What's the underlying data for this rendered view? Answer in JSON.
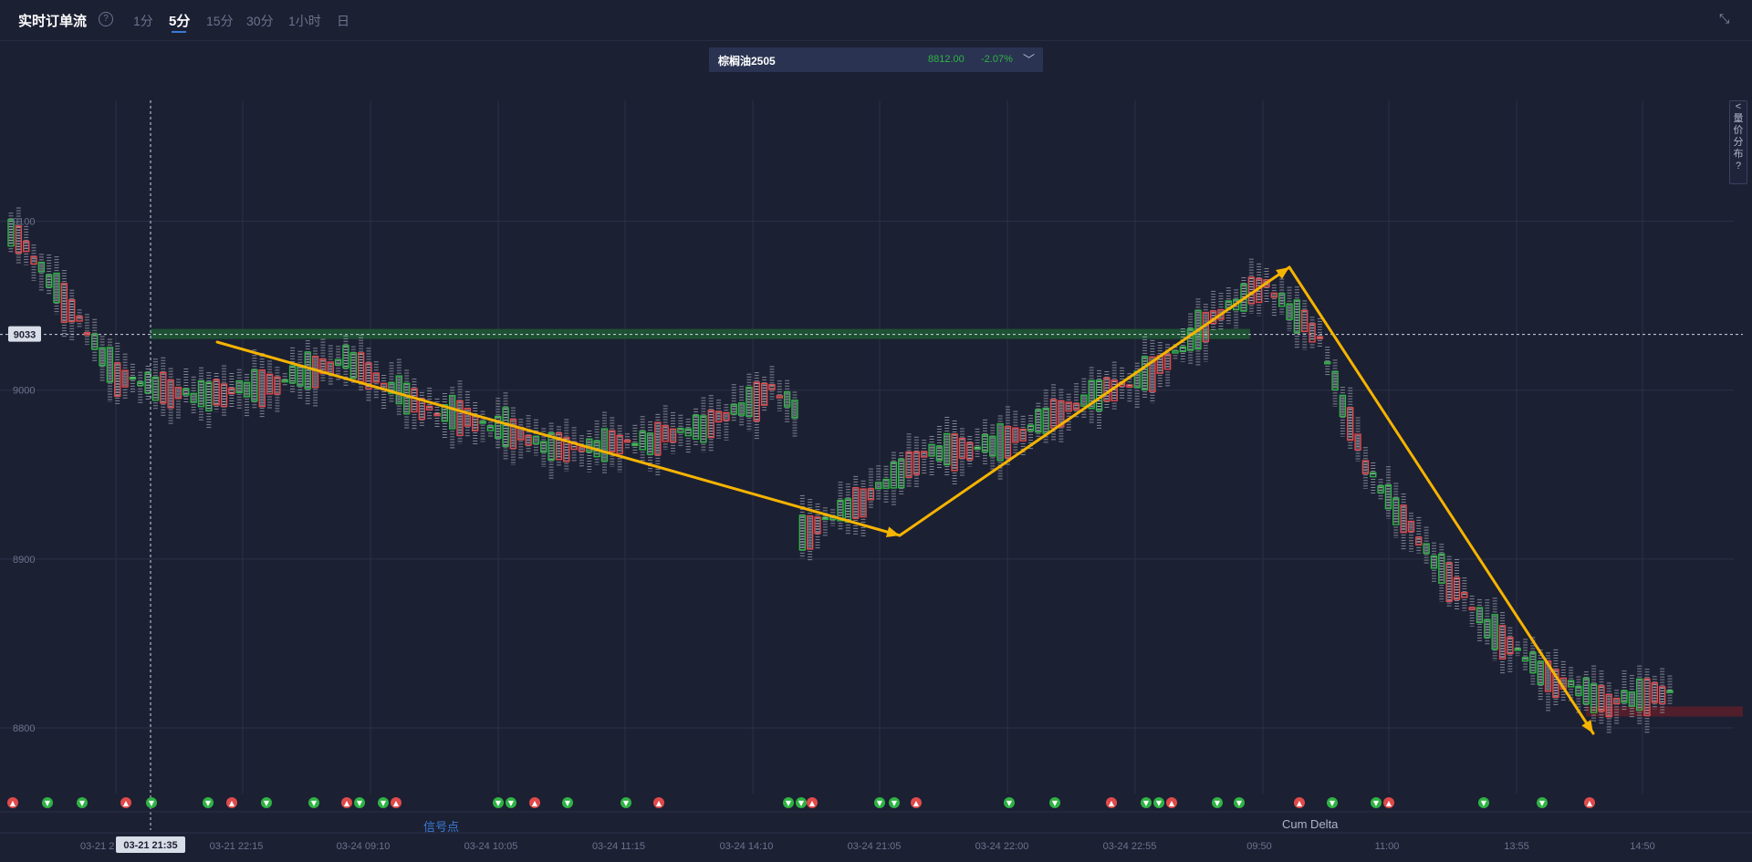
{
  "header": {
    "title": "实时订单流",
    "help": "?",
    "timeframes": [
      "1分",
      "5分",
      "15分",
      "30分",
      "1小时",
      "日"
    ],
    "active_timeframe": "5分"
  },
  "symbol": {
    "name": "棕榈油2505",
    "price": "8812.00",
    "change": "-2.07%"
  },
  "sidebar_tab": {
    "chars": [
      "<",
      "量",
      "价",
      "分",
      "布",
      "?"
    ]
  },
  "price_axis": {
    "ticks": [
      "9100",
      "9000",
      "8900",
      "8800"
    ],
    "current_label": "9033"
  },
  "time_axis": {
    "labels": [
      "03-21 21:35",
      "03-21 22:15",
      "03-24 09:10",
      "03-24 10:05",
      "03-24 11:15",
      "03-24 14:10",
      "03-24 21:05",
      "03-24 22:00",
      "03-24 22:55",
      "09:50",
      "11:00",
      "13:55",
      "14:50"
    ],
    "crosshair_label": "03-21 21:35",
    "partial_first": "03-21 2"
  },
  "bottom_tabs": {
    "signals": "信号点",
    "cum_delta": "Cum Delta"
  },
  "colors": {
    "background": "#1c2033",
    "up": "#2fb344",
    "down": "#e04a4a",
    "arrow": "#f5b400",
    "grid": "#2b3047",
    "accent": "#3a7bd5"
  },
  "chart_data": {
    "type": "candlestick-footprint",
    "ylim": [
      8780,
      9150
    ],
    "horizontal_zones": [
      {
        "price": 9033,
        "color": "green",
        "label": "9033"
      },
      {
        "price": 8810,
        "color": "red"
      }
    ],
    "trend_arrows": [
      {
        "from": {
          "time": "03-21 22:15",
          "price": 9010
        },
        "to": {
          "time": "03-24 21:05",
          "price": 8918
        }
      },
      {
        "from": {
          "time": "03-24 21:05",
          "price": 8918
        },
        "to": {
          "time": "09:50",
          "price": 9063
        }
      },
      {
        "from": {
          "time": "09:50",
          "price": 9063
        },
        "to": {
          "time": "14:50",
          "price": 8810
        }
      }
    ],
    "path_points": [
      {
        "i": 0,
        "price": 9095
      },
      {
        "i": 6,
        "price": 9060
      },
      {
        "i": 14,
        "price": 9008
      },
      {
        "i": 24,
        "price": 8996
      },
      {
        "i": 34,
        "price": 9003
      },
      {
        "i": 44,
        "price": 9018
      },
      {
        "i": 54,
        "price": 8990
      },
      {
        "i": 64,
        "price": 8978
      },
      {
        "i": 72,
        "price": 8965
      },
      {
        "i": 84,
        "price": 8970
      },
      {
        "i": 92,
        "price": 8980
      },
      {
        "i": 100,
        "price": 9000
      },
      {
        "i": 103,
        "price": 8990
      },
      {
        "i": 104,
        "price": 8915
      },
      {
        "i": 112,
        "price": 8935
      },
      {
        "i": 120,
        "price": 8962
      },
      {
        "i": 130,
        "price": 8968
      },
      {
        "i": 140,
        "price": 8992
      },
      {
        "i": 150,
        "price": 9010
      },
      {
        "i": 160,
        "price": 9050
      },
      {
        "i": 165,
        "price": 9062
      },
      {
        "i": 172,
        "price": 9030
      },
      {
        "i": 178,
        "price": 8955
      },
      {
        "i": 186,
        "price": 8905
      },
      {
        "i": 194,
        "price": 8860
      },
      {
        "i": 202,
        "price": 8830
      },
      {
        "i": 210,
        "price": 8815
      },
      {
        "i": 218,
        "price": 8822
      }
    ],
    "signals": [
      {
        "time": "03-21 21:35",
        "type": "down"
      },
      {
        "time": "03-21 22:15",
        "type": "up"
      },
      {
        "time": "03-24 09:10",
        "type": "down"
      },
      {
        "time": "03-24 10:05",
        "type": "up"
      },
      {
        "time": "03-24 11:15",
        "type": "down"
      },
      {
        "time": "03-24 14:10",
        "type": "up"
      },
      {
        "time": "03-24 21:05",
        "type": "up"
      },
      {
        "time": "03-24 22:00",
        "type": "down"
      },
      {
        "time": "03-24 22:55",
        "type": "down"
      },
      {
        "time": "09:50",
        "type": "up"
      },
      {
        "time": "11:00",
        "type": "down"
      },
      {
        "time": "13:55",
        "type": "up"
      },
      {
        "time": "14:50",
        "type": "down"
      }
    ]
  }
}
